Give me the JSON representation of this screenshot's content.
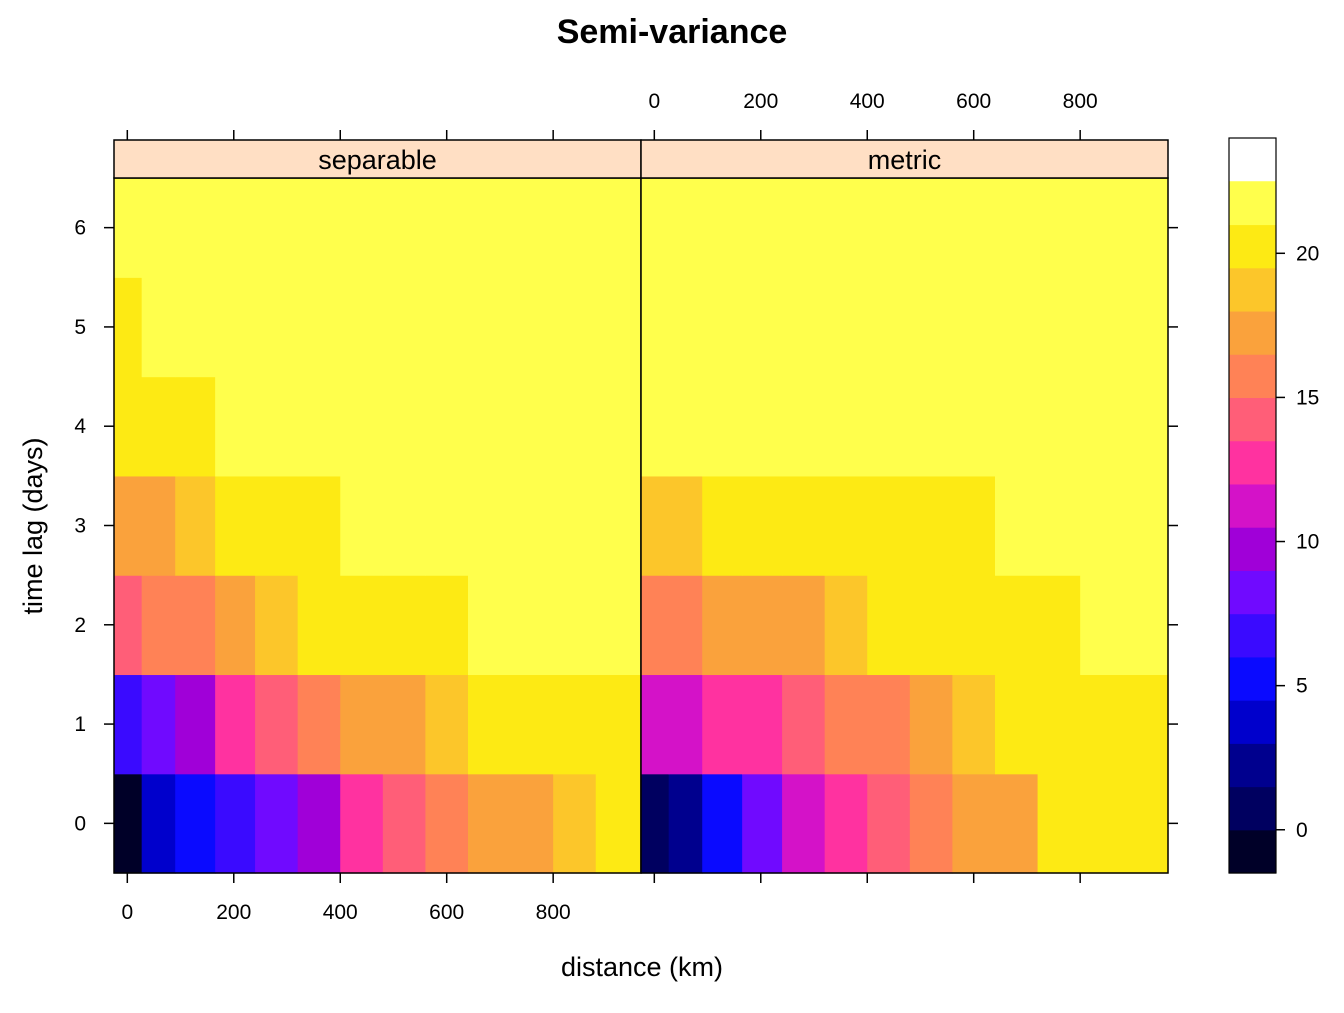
{
  "chart_data": {
    "type": "heatmap",
    "title": "Semi-variance",
    "xlabel": "distance (km)",
    "ylabel": "time lag (days)",
    "xlim": [
      -25,
      965
    ],
    "ylim": [
      -0.5,
      6.5
    ],
    "x_ticks": [
      0,
      200,
      400,
      600,
      800
    ],
    "y_ticks": [
      0,
      1,
      2,
      3,
      4,
      5,
      6
    ],
    "x_bin_edges": [
      -25,
      27,
      90,
      165,
      240,
      320,
      400,
      480,
      560,
      640,
      720,
      800,
      880,
      965
    ],
    "time_lags": [
      0,
      1,
      2,
      3,
      4,
      5,
      6
    ],
    "colorkey": {
      "levels": [
        -1.5,
        0,
        1.5,
        3,
        4.5,
        6,
        7.5,
        9,
        10.5,
        12,
        13.5,
        15,
        16.5,
        18,
        19.5,
        21,
        22.5,
        24
      ],
      "colors": [
        "#000028",
        "#000060",
        "#00008E",
        "#0000CC",
        "#0A0AFF",
        "#3A0AFF",
        "#700AFF",
        "#A000D8",
        "#D412C8",
        "#FF32A0",
        "#FF5E78",
        "#FF8256",
        "#FAA23C",
        "#FCC62A",
        "#FDEA14",
        "#FFFF4C"
      ],
      "ticks": [
        0,
        5,
        10,
        15,
        20
      ]
    },
    "panels": [
      {
        "name": "separable",
        "values": [
          [
            -0.5,
            3.5,
            4.5,
            6.5,
            8.0,
            10.0,
            12.8,
            14.0,
            16.0,
            16.5,
            17.5,
            18.5,
            19.5
          ],
          [
            6.5,
            8.0,
            10.0,
            12.8,
            14.0,
            16.0,
            16.5,
            17.5,
            18.5,
            19.5,
            20.0,
            20.0,
            20.0
          ],
          [
            14.0,
            15.5,
            16.0,
            17.5,
            18.5,
            19.5,
            19.5,
            20.0,
            20.5,
            21.5,
            21.5,
            21.5,
            21.5
          ],
          [
            17.5,
            17.5,
            18.5,
            19.5,
            20.0,
            20.0,
            21.5,
            21.5,
            21.5,
            21.5,
            21.5,
            21.5,
            21.5
          ],
          [
            19.5,
            19.5,
            20.0,
            21.5,
            21.5,
            21.5,
            21.5,
            21.5,
            21.5,
            21.5,
            21.5,
            21.5,
            21.5
          ],
          [
            20.0,
            21.5,
            21.5,
            21.5,
            21.5,
            21.5,
            21.5,
            21.5,
            21.5,
            21.5,
            21.5,
            21.5,
            21.5
          ],
          [
            21.5,
            21.5,
            21.5,
            21.5,
            21.5,
            21.5,
            21.5,
            21.5,
            21.5,
            21.5,
            22.5,
            23.0,
            23.0
          ]
        ]
      },
      {
        "name": "metric",
        "values": [
          [
            0.5,
            2.5,
            4.5,
            8.0,
            11.0,
            12.8,
            14.0,
            15.5,
            16.5,
            17.5,
            20.0,
            20.0,
            20.0
          ],
          [
            11.0,
            11.0,
            12.0,
            12.8,
            13.5,
            15.0,
            16.0,
            17.5,
            18.0,
            19.5,
            20.0,
            20.0,
            20.0
          ],
          [
            15.5,
            15.5,
            16.5,
            17.5,
            17.5,
            18.5,
            19.5,
            20.0,
            20.0,
            20.5,
            20.5,
            21.0,
            21.5
          ],
          [
            18.5,
            18.5,
            19.5,
            19.5,
            20.0,
            20.0,
            20.5,
            20.5,
            20.5,
            21.0,
            21.5,
            21.5,
            21.5
          ],
          [
            21.0,
            21.0,
            21.0,
            21.5,
            21.5,
            21.5,
            21.5,
            21.5,
            21.5,
            21.5,
            21.5,
            21.5,
            21.5
          ],
          [
            21.5,
            21.5,
            21.5,
            21.5,
            21.5,
            21.5,
            21.5,
            21.5,
            21.5,
            21.5,
            21.5,
            21.5,
            21.5
          ],
          [
            21.5,
            21.5,
            21.5,
            21.5,
            21.5,
            21.5,
            21.5,
            21.5,
            21.5,
            21.5,
            21.5,
            21.5,
            21.5
          ]
        ]
      }
    ],
    "strip_color": "#FFDFC4",
    "grid": false,
    "legend": "right"
  }
}
